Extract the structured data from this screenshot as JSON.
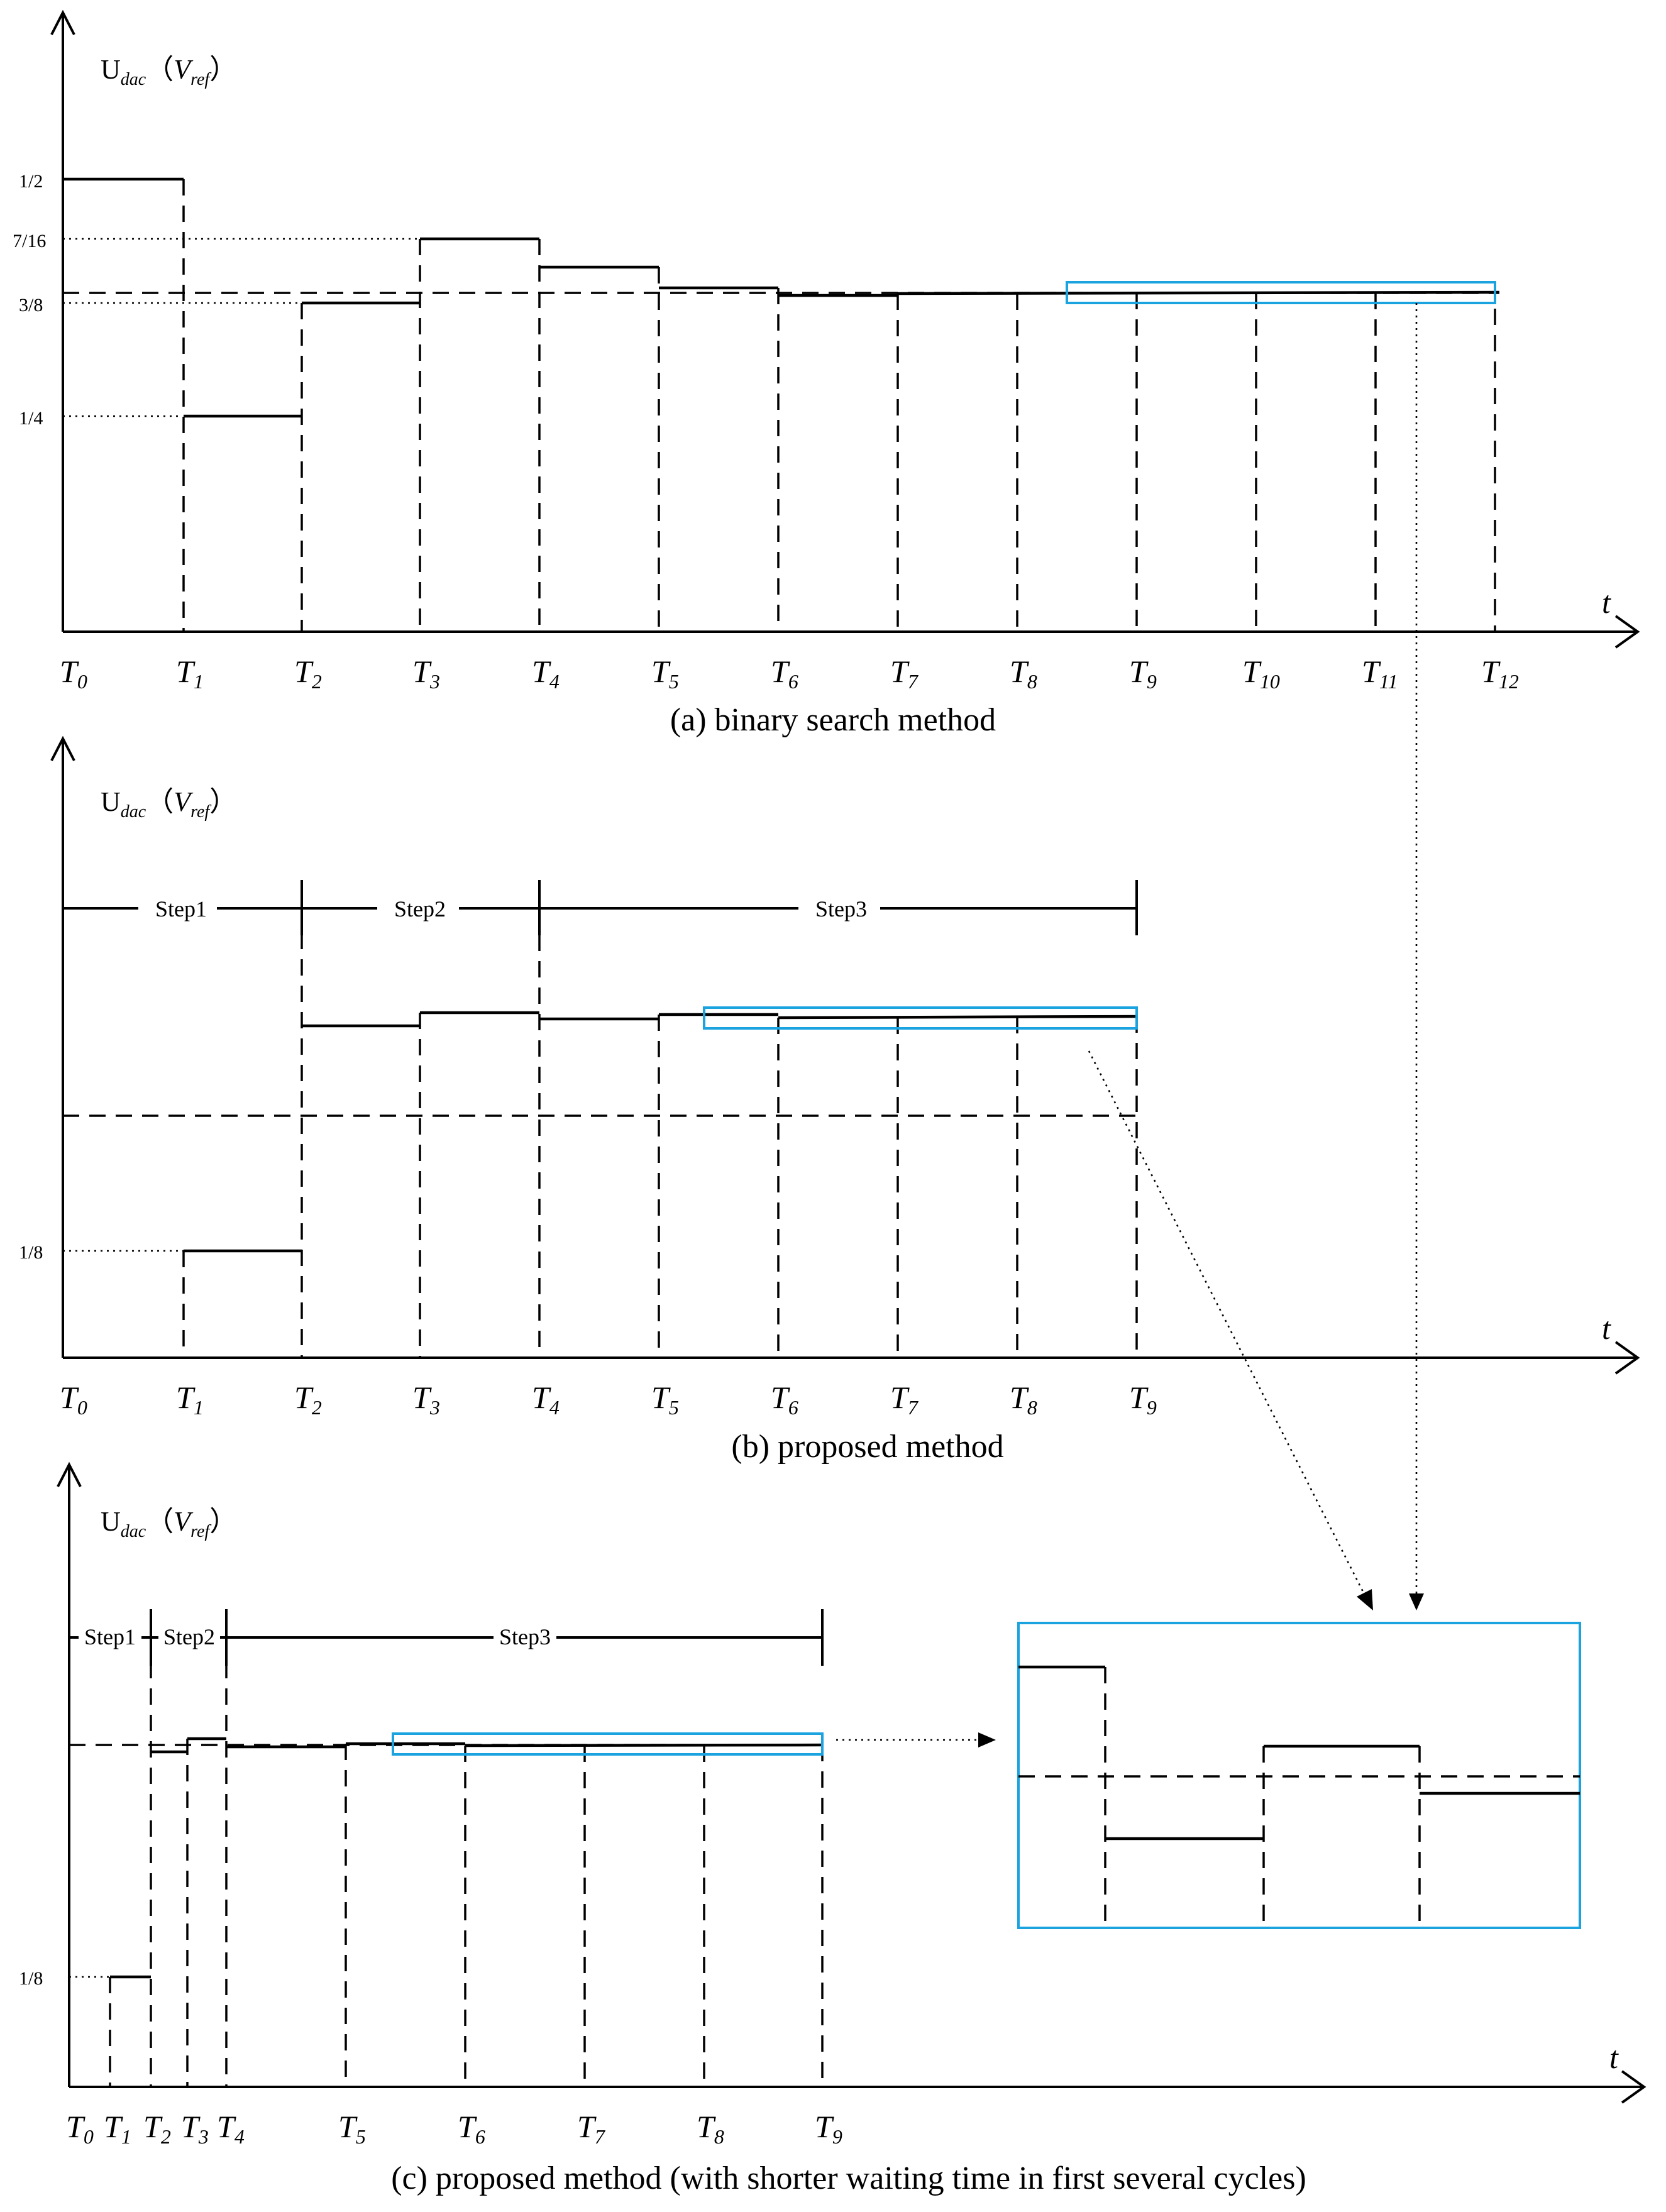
{
  "panels": [
    {
      "id": "a",
      "caption": "(a) binary search method",
      "y_axis_label": "Udac (Vref)",
      "t_axis_label": "t",
      "time_labels": [
        "T0",
        "T1",
        "T2",
        "T3",
        "T4",
        "T5",
        "T6",
        "T7",
        "T8",
        "T9",
        "T10",
        "T11",
        "T12"
      ],
      "y_ticks": [
        "1/2",
        "7/16",
        "3/8",
        "1/4"
      ],
      "steps": []
    },
    {
      "id": "b",
      "caption": "(b) proposed method",
      "y_axis_label": "Udac (Vref)",
      "t_axis_label": "t",
      "time_labels": [
        "T0",
        "T1",
        "T2",
        "T3",
        "T4",
        "T5",
        "T6",
        "T7",
        "T8",
        "T9"
      ],
      "y_ticks": [
        "1/8"
      ],
      "steps": [
        "Step1",
        "Step2",
        "Step3"
      ]
    },
    {
      "id": "c",
      "caption": "(c) proposed method (with shorter waiting time in first several cycles)",
      "y_axis_label": "Udac (Vref)",
      "t_axis_label": "t",
      "time_labels": [
        "T0",
        "T1",
        "T2",
        "T3",
        "T4",
        "T5",
        "T6",
        "T7",
        "T8",
        "T9"
      ],
      "y_ticks": [
        "1/8"
      ],
      "steps": [
        "Step1",
        "Step2",
        "Step3"
      ]
    }
  ],
  "colors": {
    "highlight": "#1aa3de",
    "ink": "#000000"
  }
}
